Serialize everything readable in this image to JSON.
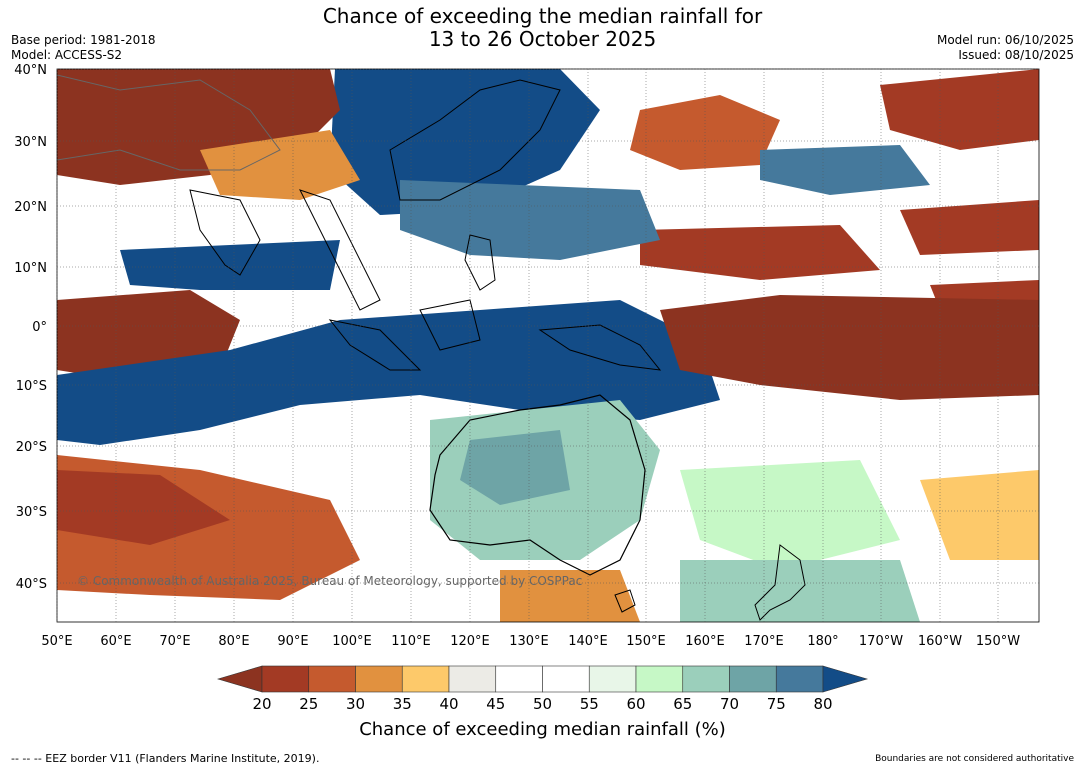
{
  "title": {
    "line1": "Chance of exceeding the median rainfall for",
    "line2": "13 to 26 October 2025"
  },
  "meta": {
    "base_period": "Base period: 1981-2018",
    "model": "Model: ACCESS-S2",
    "model_run": "Model run: 06/10/2025",
    "issued": "Issued: 08/10/2025"
  },
  "map": {
    "lat_labels": [
      "40°N",
      "30°N",
      "20°N",
      "10°N",
      "0°",
      "10°S",
      "20°S",
      "30°S",
      "40°S"
    ],
    "lon_labels": [
      "50°E",
      "60°E",
      "70°E",
      "80°E",
      "90°E",
      "100°E",
      "110°E",
      "120°E",
      "130°E",
      "140°E",
      "150°E",
      "160°E",
      "170°E",
      "180°",
      "170°W",
      "160°W",
      "150°W"
    ],
    "copyright": "© Commonwealth of Australia 2025, Bureau of Meteorology, supported by COSPPac"
  },
  "colorbar": {
    "ticks": [
      "20",
      "25",
      "30",
      "35",
      "40",
      "45",
      "50",
      "55",
      "60",
      "65",
      "70",
      "75",
      "80"
    ],
    "colors": [
      "#a33a24",
      "#c55a2e",
      "#e1913f",
      "#fdc96a",
      "#ecebe6",
      "#ffffff",
      "#ffffff",
      "#e8f6e8",
      "#c6f8c6",
      "#9bcfbb",
      "#6ea4a6",
      "#45799c"
    ],
    "low_color": "#8c3320",
    "high_color": "#134c87",
    "label": "Chance of exceeding median rainfall (%)"
  },
  "footer": {
    "eez_note": "--  --  -- EEZ border V11 (Flanders Marine Institute, 2019).",
    "boundary_note": "Boundaries are not considered authoritative"
  }
}
